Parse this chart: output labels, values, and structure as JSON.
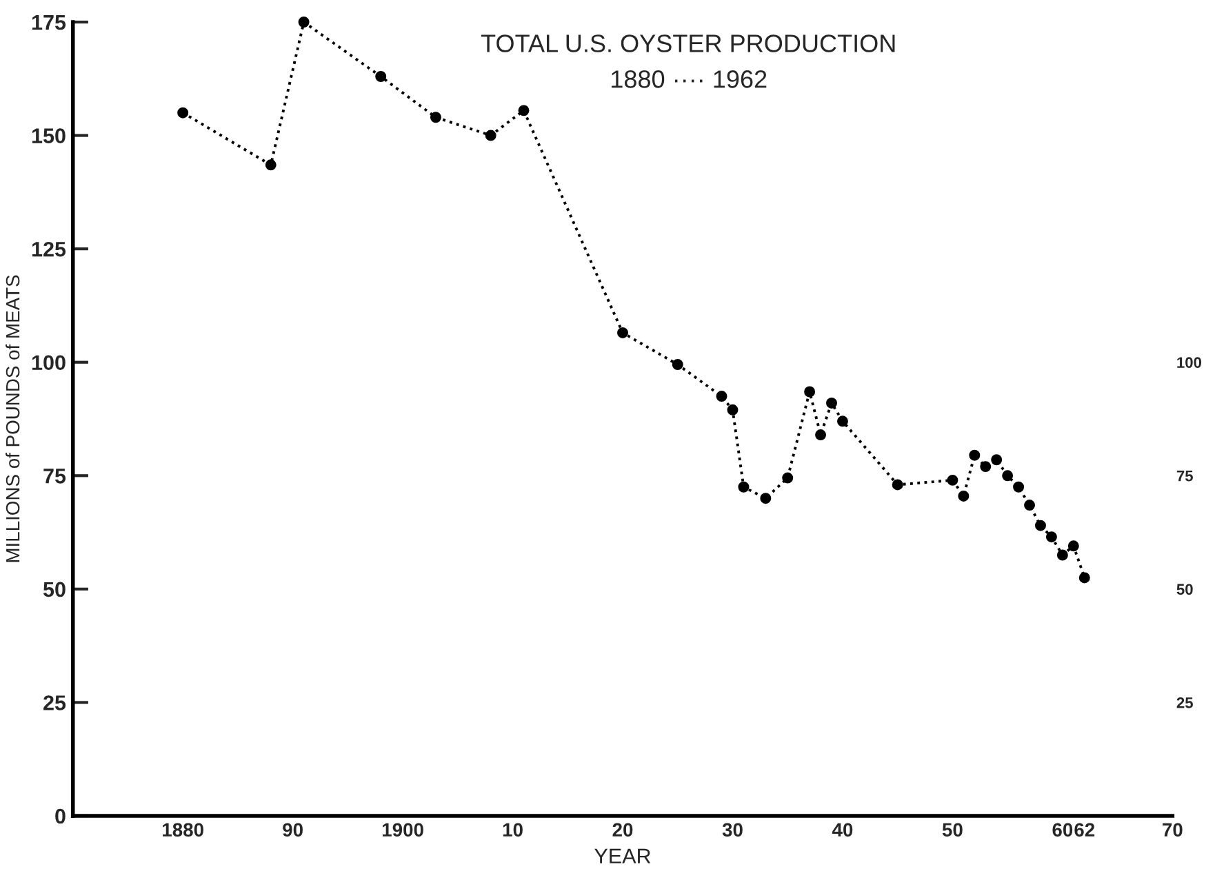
{
  "chart_data": {
    "type": "line",
    "title": "TOTAL U.S. OYSTER PRODUCTION",
    "subtitle": "1880 ···· 1962",
    "xlabel": "YEAR",
    "ylabel": "MILLIONS of POUNDS of MEATS",
    "x": [
      1880,
      1888,
      1891,
      1898,
      1903,
      1908,
      1911,
      1920,
      1925,
      1929,
      1930,
      1931,
      1933,
      1935,
      1937,
      1938,
      1939,
      1940,
      1945,
      1950,
      1951,
      1952,
      1953,
      1954,
      1955,
      1956,
      1957,
      1958,
      1959,
      1960,
      1961,
      1962
    ],
    "series": [
      {
        "color": "#000000",
        "values": [
          155,
          143.5,
          175,
          163,
          154,
          150,
          155.5,
          106.5,
          99.5,
          92.5,
          89.5,
          72.5,
          70,
          74.5,
          93.5,
          84,
          91,
          87,
          73,
          74,
          70.5,
          79.5,
          77,
          78.5,
          75,
          72.5,
          68.5,
          64,
          61.5,
          57.5,
          59.5,
          52.5
        ]
      }
    ],
    "xlim": [
      1870,
      1970
    ],
    "xticks": [
      {
        "value": 1880,
        "label": "1880"
      },
      {
        "value": 1890,
        "label": "90"
      },
      {
        "value": 1900,
        "label": "1900"
      },
      {
        "value": 1910,
        "label": "10"
      },
      {
        "value": 1920,
        "label": "20"
      },
      {
        "value": 1930,
        "label": "30"
      },
      {
        "value": 1940,
        "label": "40"
      },
      {
        "value": 1950,
        "label": "50"
      },
      {
        "value": 1960,
        "label": "60"
      },
      {
        "value": 1962,
        "label": "62"
      },
      {
        "value": 1970,
        "label": "70"
      }
    ],
    "ylim": [
      0,
      175
    ],
    "yticks": [
      0,
      25,
      50,
      75,
      100,
      125,
      150,
      175
    ],
    "y2lim": [
      0,
      175
    ],
    "y2ticks": [
      25,
      50,
      75,
      100
    ],
    "grid": false,
    "legend": false,
    "marker": "circle",
    "line_style": "dotted"
  }
}
